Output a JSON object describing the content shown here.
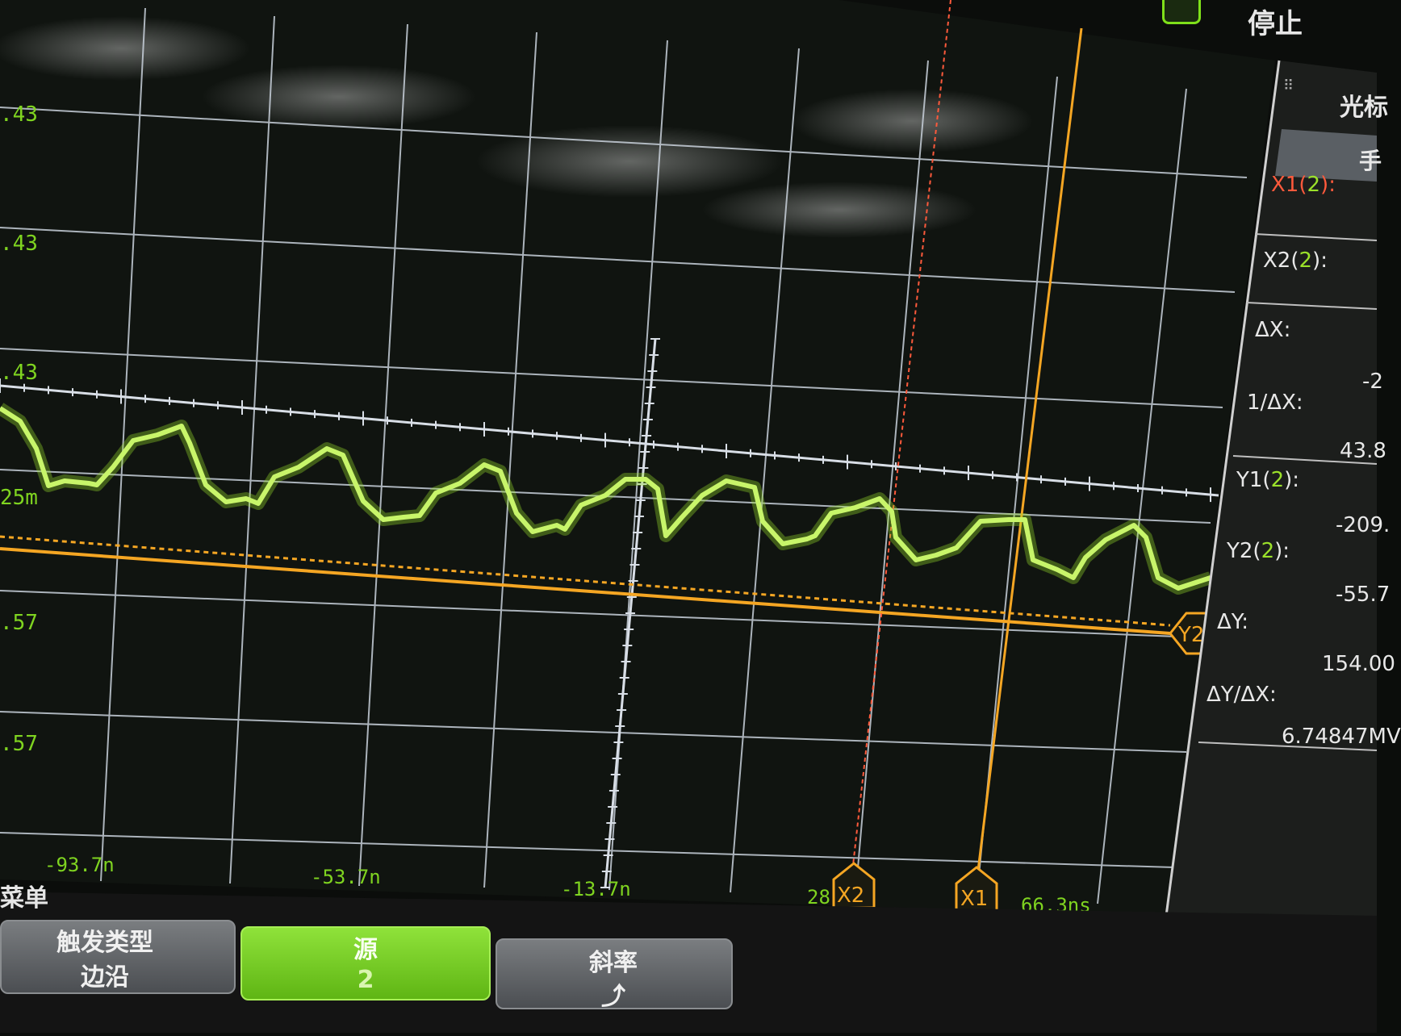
{
  "status": {
    "run_state": "停止"
  },
  "sidebar": {
    "title": "光标",
    "mode_button": "手",
    "fields": [
      {
        "label_prefix": "X1(",
        "label_chan": "2",
        "label_suffix": "):",
        "value": ""
      },
      {
        "label_prefix": "X2(",
        "label_chan": "2",
        "label_suffix": "):",
        "value": ""
      },
      {
        "label_prefix": "ΔX:",
        "label_chan": "",
        "label_suffix": "",
        "value": "-2"
      },
      {
        "label_prefix": "1/ΔX:",
        "label_chan": "",
        "label_suffix": "",
        "value": "43.8"
      },
      {
        "label_prefix": "Y1(",
        "label_chan": "2",
        "label_suffix": "):",
        "value": "-209."
      },
      {
        "label_prefix": "Y2(",
        "label_chan": "2",
        "label_suffix": "):",
        "value": "-55.7"
      },
      {
        "label_prefix": "ΔY:",
        "label_chan": "",
        "label_suffix": "",
        "value": "154.00"
      },
      {
        "label_prefix": "ΔY/ΔX:",
        "label_chan": "",
        "label_suffix": "",
        "value": "6.74847MV"
      }
    ]
  },
  "scope": {
    "y_labels": [
      ".43",
      ".43",
      ".43",
      "25m",
      ".57",
      ".57"
    ],
    "x_labels": [
      "-93.7n",
      "-53.7n",
      "-13.7n",
      "28",
      "66.3ns"
    ],
    "markers": {
      "x1": "X1",
      "x2": "X2",
      "y2": "Y2"
    }
  },
  "softkeys": {
    "menu_label": "菜单",
    "items": [
      {
        "title": "触发类型",
        "value": "边沿"
      },
      {
        "title": "源",
        "value": "2"
      },
      {
        "title": "斜率",
        "value": "⤴"
      }
    ]
  },
  "colors": {
    "trace": "#9be12a",
    "cursor": "#f5a623",
    "cursor_x2": "#ff5a3c",
    "grid": "#cfd6e0",
    "label_green": "#7fd420",
    "active_softkey": "#7ed321"
  }
}
